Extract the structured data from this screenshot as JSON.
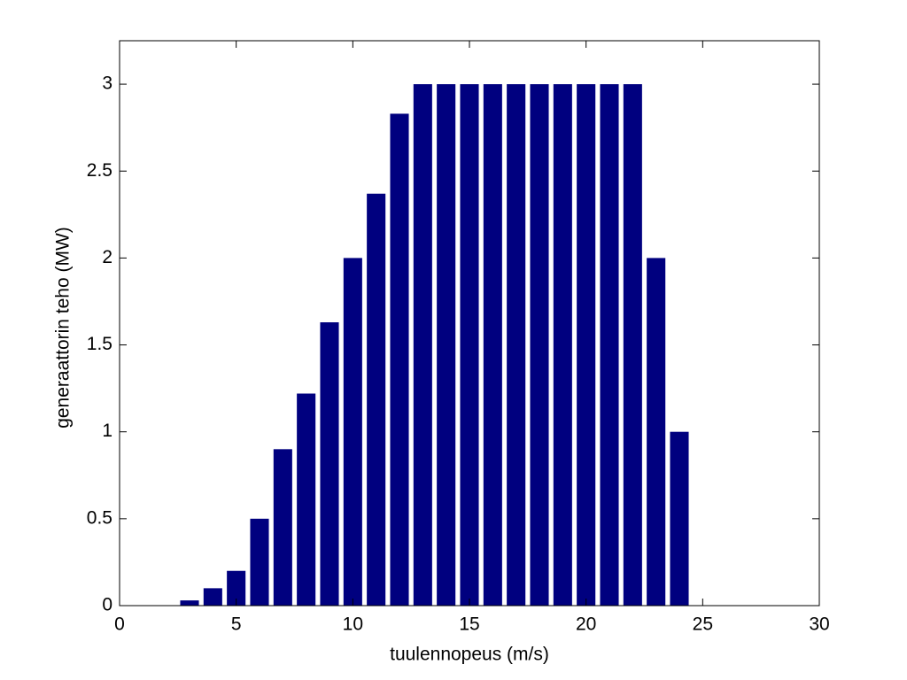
{
  "chart_data": {
    "type": "bar",
    "x_label": "tuulennopeus (m/s)",
    "y_label": "generaattorin teho (MW)",
    "x": [
      3,
      4,
      5,
      6,
      7,
      8,
      9,
      10,
      11,
      12,
      13,
      14,
      15,
      16,
      17,
      18,
      19,
      20,
      21,
      22,
      23,
      24
    ],
    "values": [
      0.03,
      0.1,
      0.2,
      0.5,
      0.9,
      1.22,
      1.63,
      2.0,
      2.37,
      2.83,
      3,
      3,
      3,
      3,
      3,
      3,
      3,
      3,
      3,
      3,
      2,
      1
    ],
    "color": "#00007f",
    "xlim": [
      0,
      30
    ],
    "xticks": [
      0,
      5,
      10,
      15,
      20,
      25,
      30
    ],
    "ylim": [
      0,
      3.25
    ],
    "yticks": [
      0,
      0.5,
      1,
      1.5,
      2,
      2.5,
      3
    ]
  }
}
